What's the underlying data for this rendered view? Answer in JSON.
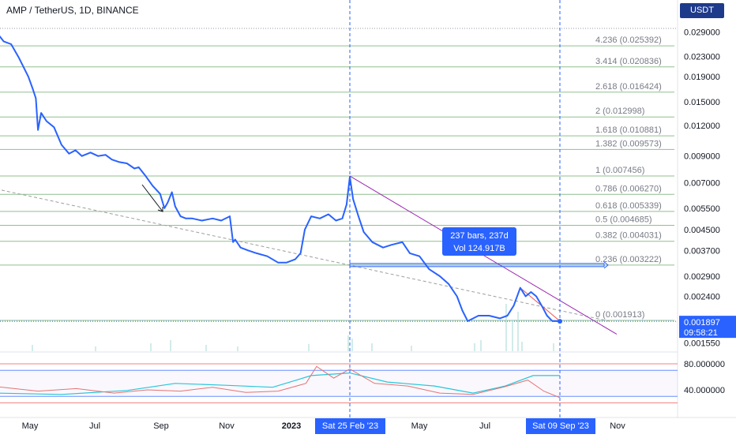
{
  "header": {
    "title": "AMP / TetherUS, 1D, BINANCE"
  },
  "currency_button": "USDT",
  "colors": {
    "price_line": "#2962ff",
    "fib_line": "#8fbf8f",
    "fib_label": "#787b86",
    "trend_line": "#9c27b0",
    "dashed_trend": "#9e9e9e",
    "cursor_line": "#2962ff",
    "rsi_line": "#e57373",
    "channel_line": "#26c6da",
    "badge_bg": "#2962ff"
  },
  "chart_data": [
    {
      "type": "line",
      "title": "AMP / TetherUS, 1D, BINANCE",
      "y_scale": "log",
      "yaxis_ticks": [
        "0.029000",
        "0.023000",
        "0.019000",
        "0.015000",
        "0.012000",
        "0.009000",
        "0.007000",
        "0.005500",
        "0.004500",
        "0.003700",
        "0.002900",
        "0.002400",
        "0.001550"
      ],
      "xaxis_ticks": [
        "May",
        "Jul",
        "Sep",
        "Nov",
        "2023",
        "May",
        "Jul",
        "Nov"
      ],
      "fib_levels": [
        {
          "ratio": "4.236",
          "price": 0.025392,
          "label": "4.236 (0.025392)"
        },
        {
          "ratio": "3.414",
          "price": 0.020836,
          "label": "3.414 (0.020836)"
        },
        {
          "ratio": "2.618",
          "price": 0.016424,
          "label": "2.618 (0.016424)"
        },
        {
          "ratio": "2",
          "price": 0.012998,
          "label": "2 (0.012998)"
        },
        {
          "ratio": "1.618",
          "price": 0.010881,
          "label": "1.618 (0.010881)"
        },
        {
          "ratio": "1.382",
          "price": 0.009573,
          "label": "1.382 (0.009573)"
        },
        {
          "ratio": "1",
          "price": 0.007456,
          "label": "1 (0.007456)"
        },
        {
          "ratio": "0.786",
          "price": 0.00627,
          "label": "0.786 (0.006270)"
        },
        {
          "ratio": "0.618",
          "price": 0.005339,
          "label": "0.618 (0.005339)"
        },
        {
          "ratio": "0.5",
          "price": 0.004685,
          "label": "0.5 (0.004685)"
        },
        {
          "ratio": "0.382",
          "price": 0.004031,
          "label": "0.382 (0.004031)"
        },
        {
          "ratio": "0.236",
          "price": 0.003222,
          "label": "0.236 (0.003222)"
        },
        {
          "ratio": "0",
          "price": 0.001913,
          "label": "0 (0.001913)"
        }
      ],
      "series": [
        {
          "x": [
            "2022-04-01",
            "2022-04-08",
            "2022-04-15",
            "2022-04-22",
            "2022-05-01",
            "2022-05-05",
            "2022-05-08",
            "2022-05-10",
            "2022-05-13",
            "2022-05-18",
            "2022-05-25",
            "2022-06-01",
            "2022-06-08",
            "2022-06-14",
            "2022-06-20",
            "2022-06-28",
            "2022-07-05",
            "2022-07-12",
            "2022-07-18",
            "2022-07-25",
            "2022-08-01",
            "2022-08-08",
            "2022-08-12",
            "2022-08-18",
            "2022-08-25",
            "2022-09-01",
            "2022-09-05",
            "2022-09-08",
            "2022-09-12",
            "2022-09-15",
            "2022-09-20",
            "2022-09-25",
            "2022-10-01",
            "2022-10-10",
            "2022-10-20",
            "2022-10-28",
            "2022-11-05",
            "2022-11-08",
            "2022-11-10",
            "2022-11-15",
            "2022-11-22",
            "2022-11-30",
            "2022-12-10",
            "2022-12-20",
            "2022-12-28",
            "2023-01-05",
            "2023-01-10",
            "2023-01-14",
            "2023-01-20",
            "2023-01-28",
            "2023-02-05",
            "2023-02-12",
            "2023-02-18",
            "2023-02-22",
            "2023-02-25",
            "2023-02-28",
            "2023-03-05",
            "2023-03-10",
            "2023-03-18",
            "2023-03-28",
            "2023-04-05",
            "2023-04-15",
            "2023-04-22",
            "2023-05-01",
            "2023-05-10",
            "2023-05-20",
            "2023-05-28",
            "2023-06-05",
            "2023-06-10",
            "2023-06-15",
            "2023-06-25",
            "2023-07-05",
            "2023-07-15",
            "2023-07-22",
            "2023-07-28",
            "2023-08-03",
            "2023-08-08",
            "2023-08-13",
            "2023-08-18",
            "2023-08-23",
            "2023-08-28",
            "2023-09-02",
            "2023-09-06",
            "2023-09-09"
          ],
          "y": [
            0.029,
            0.0265,
            0.0258,
            0.0228,
            0.019,
            0.017,
            0.0155,
            0.0115,
            0.0135,
            0.0125,
            0.0118,
            0.01,
            0.0092,
            0.0095,
            0.009,
            0.0093,
            0.009,
            0.0091,
            0.0087,
            0.0085,
            0.0084,
            0.008,
            0.0081,
            0.0075,
            0.0068,
            0.0063,
            0.0055,
            0.0058,
            0.0064,
            0.0056,
            0.0051,
            0.005,
            0.005,
            0.0049,
            0.005,
            0.0049,
            0.0051,
            0.004,
            0.0041,
            0.0038,
            0.0037,
            0.0036,
            0.0035,
            0.0033,
            0.0033,
            0.0034,
            0.0036,
            0.0045,
            0.0051,
            0.005,
            0.0052,
            0.0049,
            0.005,
            0.0057,
            0.0074,
            0.006,
            0.0051,
            0.0044,
            0.004,
            0.0038,
            0.0039,
            0.004,
            0.0036,
            0.0035,
            0.0031,
            0.0029,
            0.0027,
            0.0024,
            0.0021,
            0.0019,
            0.002,
            0.002,
            0.00195,
            0.002,
            0.0022,
            0.0026,
            0.0024,
            0.0025,
            0.0024,
            0.0022,
            0.002,
            0.0019,
            0.0019,
            0.001897
          ]
        }
      ],
      "purple_trend": {
        "x": [
          "2023-02-25",
          "2023-11-01"
        ],
        "y": [
          0.00745,
          0.00168
        ]
      },
      "dashed_trend": {
        "x": [
          "2022-04-01",
          "2023-10-25"
        ],
        "y": [
          0.0066,
          0.0019
        ]
      },
      "measure_box": {
        "text": "237 bars, 237d",
        "vol": "Vol 124.917B"
      },
      "last_price": {
        "value": "0.001897",
        "countdown": "09:58:21"
      },
      "cursor_labels": [
        "Sat 25 Feb '23",
        "Sat 09 Sep '23"
      ]
    },
    {
      "type": "line",
      "yaxis_ticks": [
        "80.000000",
        "40.000000"
      ],
      "levels": [
        80,
        70,
        30,
        20
      ],
      "series": [
        {
          "x": [
            "2022-04-01",
            "2022-05-10",
            "2022-06-15",
            "2022-07-20",
            "2022-08-20",
            "2022-09-20",
            "2022-10-20",
            "2022-11-20",
            "2022-12-20",
            "2023-01-15",
            "2023-01-25",
            "2023-02-10",
            "2023-02-25",
            "2023-03-20",
            "2023-04-20",
            "2023-05-20",
            "2023-06-20",
            "2023-07-20",
            "2023-08-10",
            "2023-08-25",
            "2023-09-09"
          ],
          "y": [
            45,
            38,
            42,
            35,
            40,
            38,
            44,
            36,
            38,
            50,
            76,
            58,
            72,
            50,
            46,
            35,
            33,
            45,
            55,
            38,
            28
          ]
        },
        {
          "x": [
            "2022-04-01",
            "2022-06-01",
            "2022-08-01",
            "2022-09-15",
            "2022-11-01",
            "2022-12-15",
            "2023-01-20",
            "2023-02-25",
            "2023-04-01",
            "2023-05-15",
            "2023-06-20",
            "2023-07-20",
            "2023-08-15",
            "2023-09-09"
          ],
          "y": [
            35,
            33,
            39,
            50,
            47,
            44,
            62,
            66,
            52,
            46,
            35,
            46,
            62,
            62
          ]
        }
      ]
    }
  ]
}
